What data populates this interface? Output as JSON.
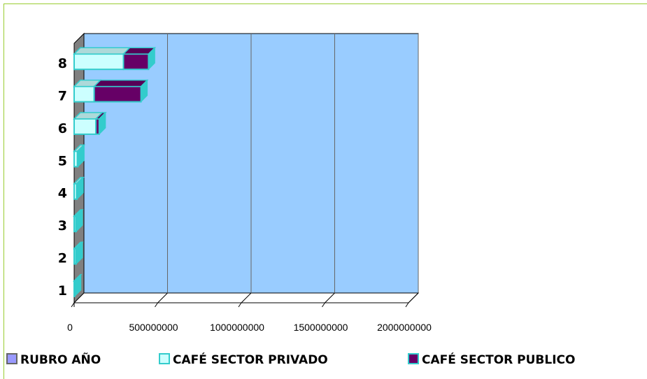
{
  "chart_data": {
    "type": "bar",
    "orientation": "horizontal",
    "stacked": true,
    "style": "3d",
    "categories": [
      "1",
      "2",
      "3",
      "4",
      "5",
      "6",
      "7",
      "8"
    ],
    "series": [
      {
        "name": "RUBRO AÑO",
        "color": "#9999ff",
        "values": [
          1,
          2,
          3,
          4,
          5,
          6,
          7,
          8
        ]
      },
      {
        "name": "CAFÉ SECTOR PRIVADO",
        "color": "#ccffff",
        "values": [
          0,
          10000000,
          10000000,
          15000000,
          20000000,
          130000000,
          120000000,
          295000000
        ]
      },
      {
        "name": "CAFÉ SECTOR PUBLICO",
        "color": "#660066",
        "values": [
          0,
          0,
          0,
          0,
          0,
          20000000,
          280000000,
          150000000
        ]
      }
    ],
    "xlim": [
      0,
      2000000000
    ],
    "xticks": [
      "0",
      "500000000",
      "1000000000",
      "1500000000",
      "2000000000"
    ],
    "xtick_values": [
      0,
      500000000,
      1000000000,
      1500000000,
      2000000000
    ],
    "plot_background": "#99ccff",
    "bar_side_color": "#33cccc",
    "grid": true,
    "legend_position": "bottom"
  }
}
